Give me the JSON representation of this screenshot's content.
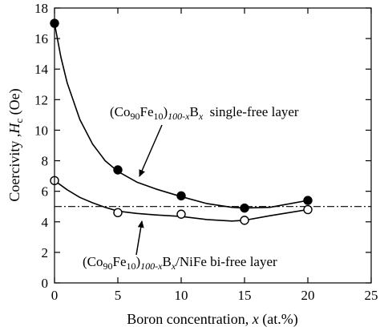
{
  "chart_data": {
    "type": "line",
    "xlim": [
      0,
      25
    ],
    "ylim": [
      0,
      18
    ],
    "x_ticks": [
      "0",
      "5",
      "10",
      "15",
      "20",
      "25"
    ],
    "y_ticks": [
      "0",
      "2",
      "4",
      "6",
      "8",
      "10",
      "12",
      "14",
      "16",
      "18"
    ],
    "xlabel": {
      "prefix": "Boron concentration, ",
      "var": "x",
      "suffix": " (at.%)"
    },
    "ylabel": {
      "prefix": "Coercivity ,",
      "var": "H",
      "sub": "c",
      "suffix": " (Oe)"
    },
    "reference_line": {
      "y": 5.0,
      "style": "dash-dot"
    },
    "series": [
      {
        "x": [
          0,
          5,
          10,
          15,
          20
        ],
        "y": [
          17.0,
          7.4,
          5.7,
          4.9,
          5.4
        ],
        "marker": "filled-circle",
        "curve_x": [
          0,
          0.5,
          1,
          2,
          3,
          4,
          5,
          6.5,
          8,
          10,
          12,
          14,
          15,
          17,
          20
        ],
        "curve_y": [
          17.0,
          14.8,
          13.1,
          10.7,
          9.1,
          8.0,
          7.3,
          6.6,
          6.15,
          5.65,
          5.2,
          4.95,
          4.9,
          4.95,
          5.4
        ]
      },
      {
        "x": [
          0,
          5,
          10,
          15,
          20
        ],
        "y": [
          6.7,
          4.6,
          4.5,
          4.1,
          4.8
        ],
        "marker": "open-circle",
        "curve_x": [
          0,
          1,
          2,
          3,
          4,
          5,
          6.5,
          8,
          10,
          12,
          14,
          15,
          17,
          20
        ],
        "curve_y": [
          6.7,
          6.1,
          5.6,
          5.25,
          4.95,
          4.7,
          4.55,
          4.45,
          4.35,
          4.15,
          4.05,
          4.1,
          4.4,
          4.8
        ]
      }
    ],
    "annotations": [
      {
        "pre": "(Co",
        "s1": "90",
        "mid": "Fe",
        "s2": "10",
        "close": ")",
        "s3": "100-x",
        "b": "B",
        "bsub": "x",
        "post": "  single-free layer"
      },
      {
        "pre": "(Co",
        "s1": "90",
        "mid": "Fe",
        "s2": "10",
        "close": ")",
        "s3": "100-x",
        "b": "B",
        "bsub": "x",
        "post": "/NiFe bi-free layer"
      }
    ]
  }
}
